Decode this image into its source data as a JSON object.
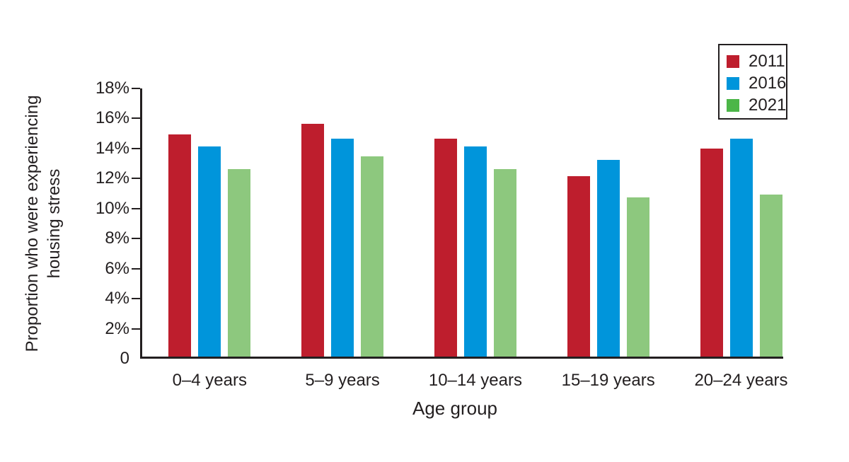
{
  "colors": {
    "background": "#FFFFFF",
    "text": "#231F20",
    "axis": "#231F20",
    "series_2011": "#BE1E2D",
    "series_2016": "#0095DB",
    "series_2021_bar": "#8DC87E",
    "series_2021_legend": "#4CB648"
  },
  "chart_data": {
    "type": "bar",
    "title": "",
    "xlabel": "Age group",
    "ylabel": "Proportion who were experiencing housing stress",
    "ylabel_lines": [
      "Proportion who were experiencing",
      "housing stress"
    ],
    "categories": [
      "0–4 years",
      "5–9 years",
      "10–14 years",
      "15–19 years",
      "20–24 years"
    ],
    "series": [
      {
        "name": "2011",
        "color": "#BE1E2D",
        "legend_color": "#BE1E2D",
        "values": [
          14.8,
          15.5,
          14.5,
          12.0,
          13.85
        ]
      },
      {
        "name": "2016",
        "color": "#0095DB",
        "legend_color": "#0095DB",
        "values": [
          14.0,
          14.5,
          14.0,
          13.1,
          14.5
        ]
      },
      {
        "name": "2021",
        "color": "#8DC87E",
        "legend_color": "#4CB648",
        "values": [
          12.5,
          13.35,
          12.5,
          10.6,
          10.8
        ]
      }
    ],
    "ylim": [
      0,
      18
    ],
    "yticks": [
      {
        "value": 18,
        "label": "18%"
      },
      {
        "value": 16,
        "label": "16%"
      },
      {
        "value": 14,
        "label": "14%"
      },
      {
        "value": 12,
        "label": "12%"
      },
      {
        "value": 10,
        "label": "10%"
      },
      {
        "value": 8,
        "label": "8%"
      },
      {
        "value": 6,
        "label": "6%"
      },
      {
        "value": 4,
        "label": "4%"
      },
      {
        "value": 2,
        "label": "2%"
      },
      {
        "value": 0,
        "label": "0"
      }
    ],
    "grid": false,
    "legend_position": "top-right"
  }
}
